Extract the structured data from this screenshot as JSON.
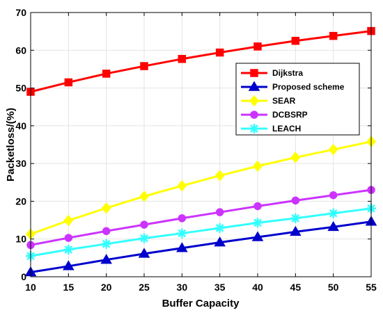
{
  "chart_data": {
    "type": "line",
    "xlabel": "Buffer Capacity",
    "ylabel": "Packetloss/(%)",
    "x": [
      10,
      15,
      20,
      25,
      30,
      35,
      40,
      45,
      50,
      55
    ],
    "xticks": [
      "10",
      "15",
      "20",
      "25",
      "30",
      "35",
      "40",
      "45",
      "50",
      "55"
    ],
    "yticks": [
      "0",
      "10",
      "20",
      "30",
      "40",
      "50",
      "60",
      "70"
    ],
    "xlim": [
      10,
      55
    ],
    "ylim": [
      0,
      70
    ],
    "grid": true,
    "legend_placement": "upper-right",
    "series": [
      {
        "name": "Dijkstra",
        "color": "#ff0000",
        "marker": "square",
        "values": [
          49.0,
          51.5,
          53.8,
          55.8,
          57.7,
          59.4,
          61.0,
          62.5,
          63.8,
          65.1
        ]
      },
      {
        "name": "Proposed scheme",
        "color": "#0000cc",
        "marker": "triangle",
        "values": [
          1.2,
          2.8,
          4.5,
          6.1,
          7.6,
          9.1,
          10.5,
          11.9,
          13.2,
          14.6
        ]
      },
      {
        "name": "SEAR",
        "color": "#ffff00",
        "marker": "diamond",
        "values": [
          11.3,
          14.9,
          18.2,
          21.3,
          24.1,
          26.8,
          29.3,
          31.6,
          33.7,
          35.8
        ]
      },
      {
        "name": "DCBSRP",
        "color": "#cc33ff",
        "marker": "circle",
        "values": [
          8.4,
          10.3,
          12.1,
          13.8,
          15.5,
          17.1,
          18.7,
          20.2,
          21.6,
          23.0
        ]
      },
      {
        "name": "LEACH",
        "color": "#33ffff",
        "marker": "star",
        "values": [
          5.5,
          7.2,
          8.7,
          10.2,
          11.5,
          12.9,
          14.3,
          15.5,
          16.8,
          18.1
        ]
      }
    ]
  }
}
